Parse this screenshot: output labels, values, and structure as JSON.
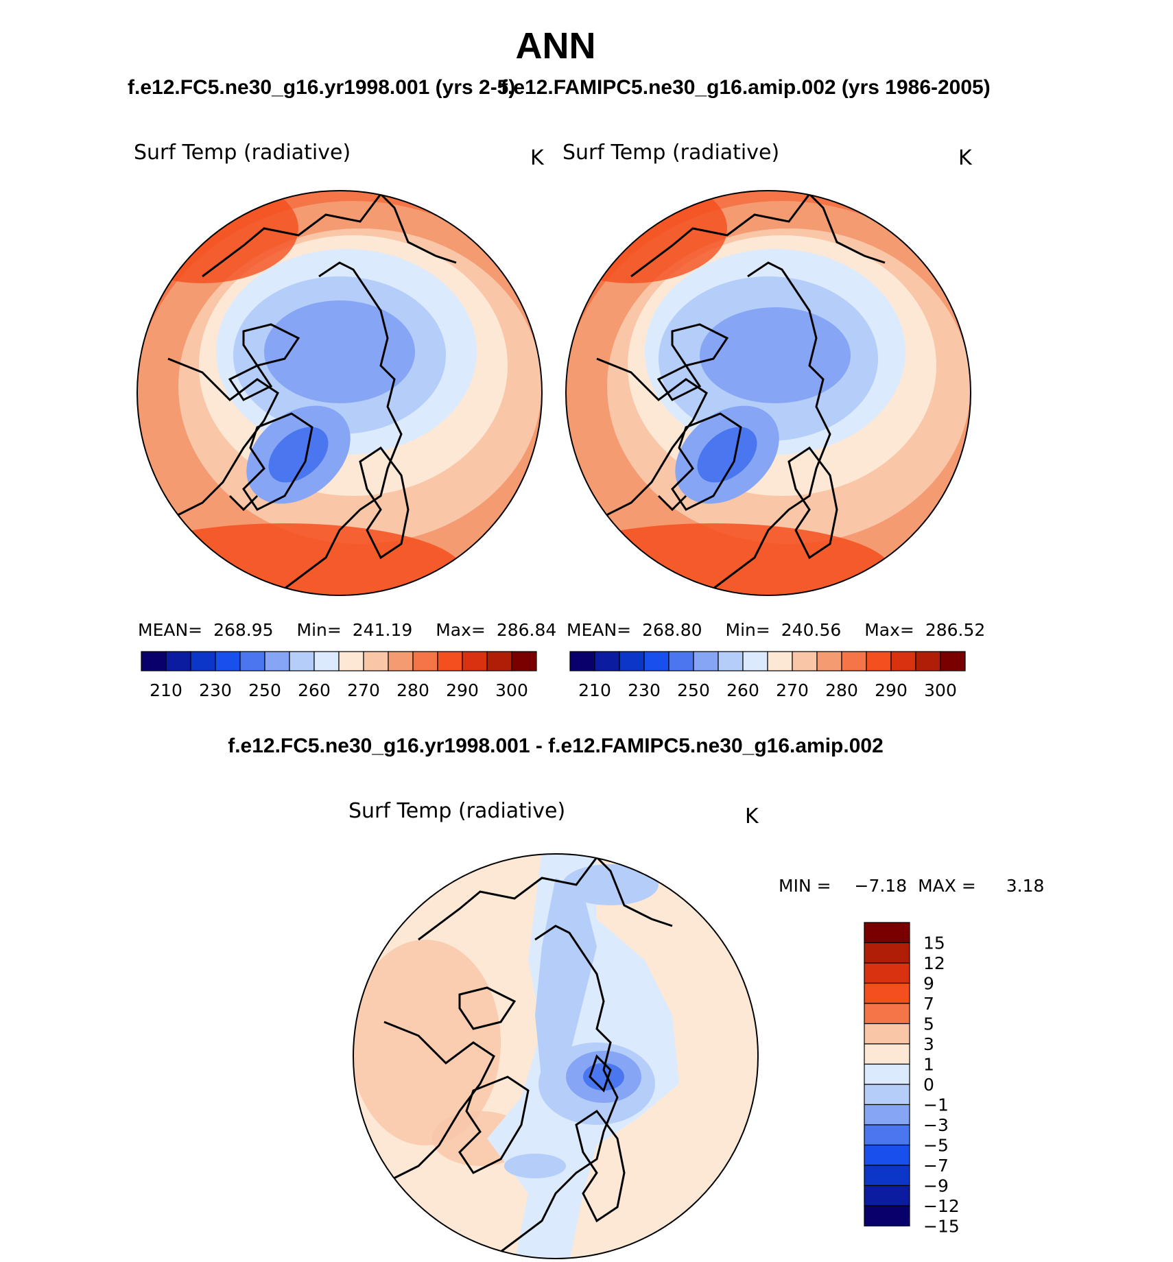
{
  "title": "ANN",
  "panel_top_left": {
    "case": "f.e12.FC5.ne30_g16.yr1998.001 (yrs 2-5)",
    "variable": "Surf Temp (radiative)",
    "units": "K",
    "stats": {
      "mean_label": "MEAN=",
      "mean": "268.95",
      "min_label": "Min=",
      "min": "241.19",
      "max_label": "Max=",
      "max": "286.84"
    }
  },
  "panel_top_right": {
    "case": "f.e12.FAMIPC5.ne30_g16.amip.002 (yrs 1986-2005)",
    "variable": "Surf Temp (radiative)",
    "units": "K",
    "stats": {
      "mean_label": "MEAN=",
      "mean": "268.80",
      "min_label": "Min=",
      "min": "240.56",
      "max_label": "Max=",
      "max": "286.52"
    }
  },
  "panel_diff": {
    "case": "f.e12.FC5.ne30_g16.yr1998.001 - f.e12.FAMIPC5.ne30_g16.amip.002",
    "variable": "Surf Temp (radiative)",
    "units": "K",
    "stats": {
      "min_label": "MIN =",
      "min": "−7.18",
      "max_label": "MAX =",
      "max": "3.18"
    }
  },
  "abs_colorbar": {
    "colors": [
      "#08006b",
      "#0b1ca0",
      "#0c36c8",
      "#1850ee",
      "#4a76f0",
      "#86a6f5",
      "#b4cdf9",
      "#dbeafd",
      "#fde8d6",
      "#f9c6a8",
      "#f49b72",
      "#f47548",
      "#f44f1e",
      "#d83210",
      "#b01e08",
      "#7a0000"
    ],
    "labels": [
      "210",
      "230",
      "250",
      "260",
      "270",
      "280",
      "290",
      "300"
    ]
  },
  "diff_colorbar": {
    "colors": [
      "#08006b",
      "#0b1ca0",
      "#0c36c8",
      "#1850ee",
      "#4a76f0",
      "#86a6f5",
      "#b4cdf9",
      "#dbeafd",
      "#fde8d6",
      "#f9c6a8",
      "#f47548",
      "#f44f1e",
      "#d83210",
      "#b01e08",
      "#7a0000"
    ],
    "labels": [
      "15",
      "12",
      "9",
      "7",
      "5",
      "3",
      "1",
      "0",
      "−1",
      "−3",
      "−5",
      "−7",
      "−9",
      "−12",
      "−15"
    ]
  }
}
